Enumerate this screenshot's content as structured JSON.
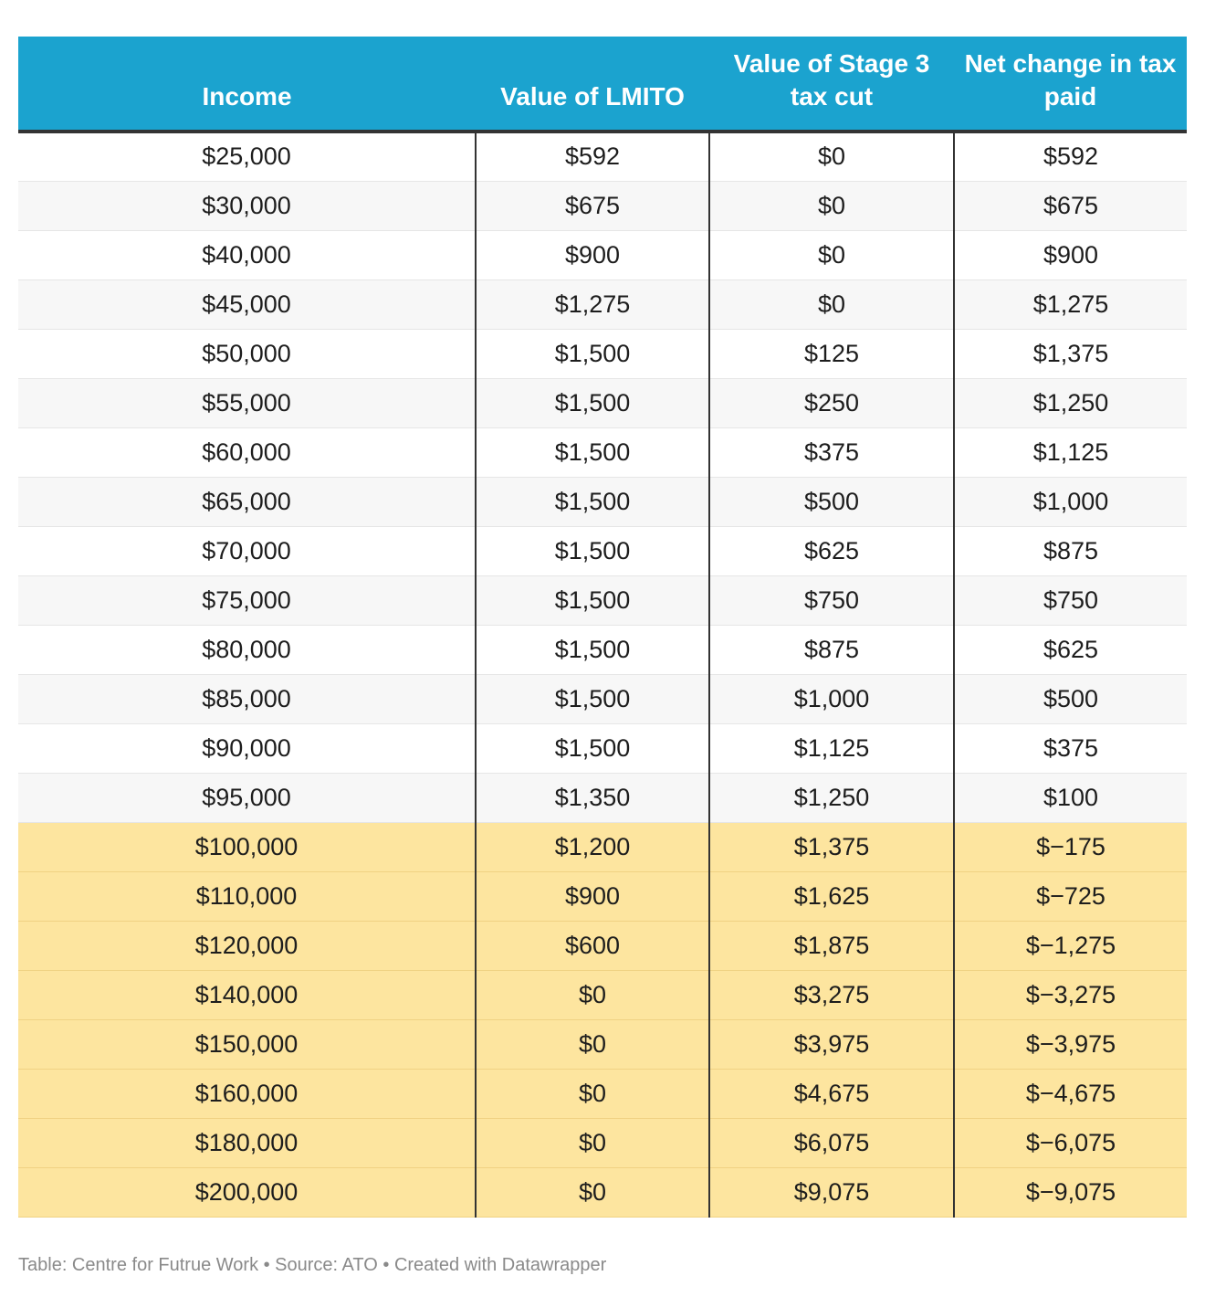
{
  "chart_data": {
    "type": "table",
    "columns": [
      "Income",
      "Value of LMITO",
      "Value of Stage 3 tax cut",
      "Net change in tax paid"
    ],
    "rows": [
      [
        "$25,000",
        "$592",
        "$0",
        "$592"
      ],
      [
        "$30,000",
        "$675",
        "$0",
        "$675"
      ],
      [
        "$40,000",
        "$900",
        "$0",
        "$900"
      ],
      [
        "$45,000",
        "$1,275",
        "$0",
        "$1,275"
      ],
      [
        "$50,000",
        "$1,500",
        "$125",
        "$1,375"
      ],
      [
        "$55,000",
        "$1,500",
        "$250",
        "$1,250"
      ],
      [
        "$60,000",
        "$1,500",
        "$375",
        "$1,125"
      ],
      [
        "$65,000",
        "$1,500",
        "$500",
        "$1,000"
      ],
      [
        "$70,000",
        "$1,500",
        "$625",
        "$875"
      ],
      [
        "$75,000",
        "$1,500",
        "$750",
        "$750"
      ],
      [
        "$80,000",
        "$1,500",
        "$875",
        "$625"
      ],
      [
        "$85,000",
        "$1,500",
        "$1,000",
        "$500"
      ],
      [
        "$90,000",
        "$1,500",
        "$1,125",
        "$375"
      ],
      [
        "$95,000",
        "$1,350",
        "$1,250",
        "$100"
      ],
      [
        "$100,000",
        "$1,200",
        "$1,375",
        "$−175"
      ],
      [
        "$110,000",
        "$900",
        "$1,625",
        "$−725"
      ],
      [
        "$120,000",
        "$600",
        "$1,875",
        "$−1,275"
      ],
      [
        "$140,000",
        "$0",
        "$3,275",
        "$−3,275"
      ],
      [
        "$150,000",
        "$0",
        "$3,975",
        "$−3,975"
      ],
      [
        "$160,000",
        "$0",
        "$4,675",
        "$−4,675"
      ],
      [
        "$180,000",
        "$0",
        "$6,075",
        "$−6,075"
      ],
      [
        "$200,000",
        "$0",
        "$9,075",
        "$−9,075"
      ]
    ],
    "highlight_from_row": 14,
    "colors": {
      "header": "#1ba3cf",
      "highlight": "#fde59f"
    }
  },
  "footer": "Table: Centre for Futrue Work • Source: ATO • Created with Datawrapper"
}
